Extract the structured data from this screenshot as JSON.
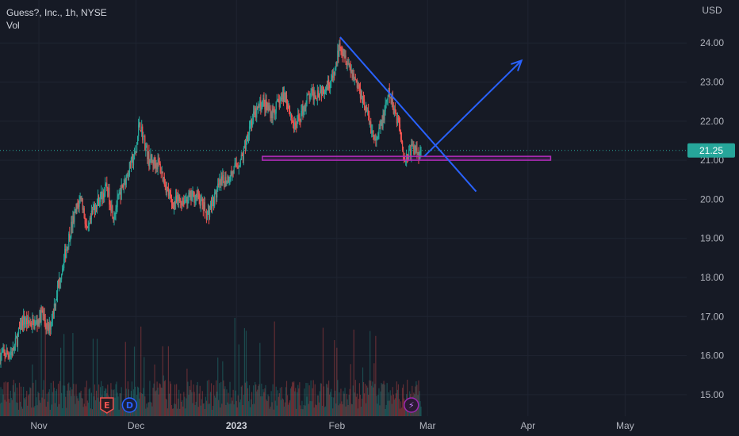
{
  "legend": {
    "symbol": "Guess?, Inc., 1h, NYSE",
    "volume_label": "Vol"
  },
  "currency": "USD",
  "last_price": "21.25",
  "colors": {
    "background": "#161a25",
    "up": "#26a69a",
    "down": "#ef5350",
    "drawing": "#2962ff",
    "zone": "#b02cb8",
    "grid": "#1f2431",
    "axis_text": "#b2b5be",
    "price_line": "#26a69a"
  },
  "events": [
    {
      "label": "E",
      "icon": "earnings-icon",
      "date": "2022-11-22",
      "color": "#ef5350"
    },
    {
      "label": "D",
      "icon": "dividend-icon",
      "date": "2022-11-29",
      "color": "#2962ff"
    },
    {
      "label": "⚡",
      "icon": "split-icon",
      "date": "2023-02-24",
      "color": "#9c27b0"
    }
  ],
  "chart_data": {
    "type": "candlestick",
    "x_ticks": [
      {
        "label": "Nov",
        "date": "2022-11-01"
      },
      {
        "label": "Dec",
        "date": "2022-12-01"
      },
      {
        "label": "2023",
        "date": "2023-01-01",
        "bold": true
      },
      {
        "label": "Feb",
        "date": "2023-02-01"
      },
      {
        "label": "Mar",
        "date": "2023-03-01"
      },
      {
        "label": "Apr",
        "date": "2023-04-01"
      },
      {
        "label": "May",
        "date": "2023-05-01"
      }
    ],
    "y_ticks": [
      "15.00",
      "16.00",
      "17.00",
      "18.00",
      "19.00",
      "20.00",
      "21.00",
      "22.00",
      "23.00",
      "24.00"
    ],
    "ylim": [
      14.45,
      25.1
    ],
    "xlim": [
      "2022-10-20",
      "2023-05-20"
    ],
    "price_path": [
      [
        "2022-10-20",
        16.0
      ],
      [
        "2022-10-24",
        16.1
      ],
      [
        "2022-10-27",
        16.9
      ],
      [
        "2022-10-31",
        16.8
      ],
      [
        "2022-11-02",
        17.1
      ],
      [
        "2022-11-04",
        16.6
      ],
      [
        "2022-11-08",
        18.2
      ],
      [
        "2022-11-11",
        19.3
      ],
      [
        "2022-11-14",
        20.1
      ],
      [
        "2022-11-16",
        19.1
      ],
      [
        "2022-11-18",
        19.8
      ],
      [
        "2022-11-22",
        20.3
      ],
      [
        "2022-11-24",
        19.6
      ],
      [
        "2022-11-28",
        20.6
      ],
      [
        "2022-12-01",
        21.2
      ],
      [
        "2022-12-02",
        22.0
      ],
      [
        "2022-12-05",
        21.0
      ],
      [
        "2022-12-08",
        20.9
      ],
      [
        "2022-12-12",
        19.9
      ],
      [
        "2022-12-16",
        20.0
      ],
      [
        "2022-12-20",
        20.1
      ],
      [
        "2022-12-23",
        19.6
      ],
      [
        "2022-12-27",
        20.4
      ],
      [
        "2022-12-30",
        20.6
      ],
      [
        "2023-01-03",
        21.1
      ],
      [
        "2023-01-05",
        21.9
      ],
      [
        "2023-01-09",
        22.5
      ],
      [
        "2023-01-12",
        22.2
      ],
      [
        "2023-01-16",
        22.7
      ],
      [
        "2023-01-19",
        21.8
      ],
      [
        "2023-01-23",
        22.6
      ],
      [
        "2023-01-27",
        22.8
      ],
      [
        "2023-01-31",
        23.1
      ],
      [
        "2023-02-02",
        24.0
      ],
      [
        "2023-02-06",
        23.2
      ],
      [
        "2023-02-09",
        22.6
      ],
      [
        "2023-02-13",
        21.4
      ],
      [
        "2023-02-16",
        22.3
      ],
      [
        "2023-02-17",
        22.7
      ],
      [
        "2023-02-20",
        22.0
      ],
      [
        "2023-02-22",
        21.0
      ],
      [
        "2023-02-24",
        21.3
      ],
      [
        "2023-02-27",
        21.2
      ]
    ],
    "last_price": 21.25,
    "annotations": {
      "trendline": {
        "from": [
          "2023-02-02",
          24.15
        ],
        "to": [
          "2023-03-16",
          20.2
        ]
      },
      "projection_arrow": {
        "from": [
          "2023-02-28",
          21.1
        ],
        "to": [
          "2023-03-30",
          23.55
        ]
      },
      "support_zone": {
        "from_date": "2023-01-09",
        "to_date": "2023-04-08",
        "low": 21.0,
        "high": 21.1
      }
    }
  }
}
